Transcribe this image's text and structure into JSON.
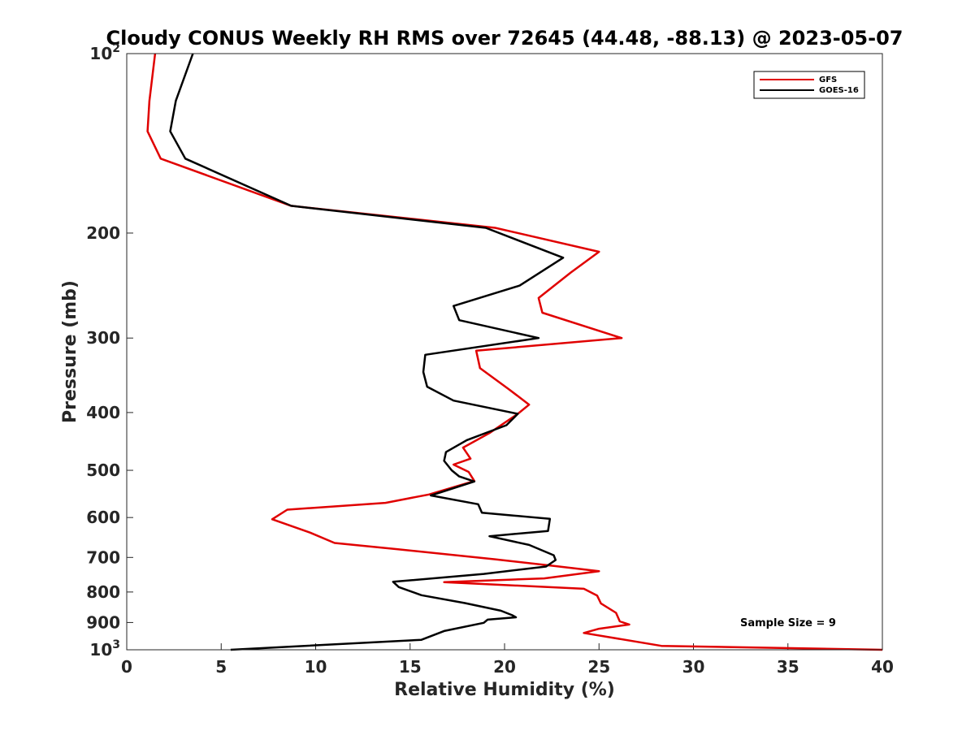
{
  "chart_data": {
    "type": "line",
    "title": "Cloudy CONUS Weekly RH RMS over 72645 (44.48, -88.13) @ 2023-05-07",
    "xlabel": "Relative Humidity (%)",
    "ylabel": "Pressure (mb)",
    "xlim": [
      0,
      40
    ],
    "ylim": [
      100,
      1000
    ],
    "y_scale": "log",
    "y_reversed": true,
    "grid": false,
    "legend_position": "top-right",
    "x_ticks": [
      0,
      5,
      10,
      15,
      20,
      25,
      30,
      35,
      40
    ],
    "x_tick_labels": [
      "0",
      "5",
      "10",
      "15",
      "20",
      "25",
      "30",
      "35",
      "40"
    ],
    "y_ticks": [
      100,
      200,
      300,
      400,
      500,
      600,
      700,
      800,
      900,
      1000
    ],
    "y_tick_labels": [
      {
        "base": "10",
        "exp": "2"
      },
      {
        "base": "200",
        "exp": ""
      },
      {
        "base": "300",
        "exp": ""
      },
      {
        "base": "400",
        "exp": ""
      },
      {
        "base": "500",
        "exp": ""
      },
      {
        "base": "600",
        "exp": ""
      },
      {
        "base": "700",
        "exp": ""
      },
      {
        "base": "800",
        "exp": ""
      },
      {
        "base": "900",
        "exp": ""
      },
      {
        "base": "10",
        "exp": "3"
      }
    ],
    "annotation": "Sample Size = 9",
    "series": [
      {
        "name": "GFS",
        "color": "#e00000",
        "points": [
          [
            1.5,
            100
          ],
          [
            1.2,
            120
          ],
          [
            1.1,
            135
          ],
          [
            1.8,
            150
          ],
          [
            8.7,
            180
          ],
          [
            19.5,
            196
          ],
          [
            25.0,
            215
          ],
          [
            23.5,
            233
          ],
          [
            21.8,
            257
          ],
          [
            22.0,
            272
          ],
          [
            26.2,
            300
          ],
          [
            18.5,
            315
          ],
          [
            18.7,
            337
          ],
          [
            20.2,
            365
          ],
          [
            21.3,
            388
          ],
          [
            20.7,
            402
          ],
          [
            19.2,
            433
          ],
          [
            17.8,
            458
          ],
          [
            18.2,
            478
          ],
          [
            17.3,
            489
          ],
          [
            18.1,
            503
          ],
          [
            18.4,
            521
          ],
          [
            16.0,
            549
          ],
          [
            13.7,
            567
          ],
          [
            8.5,
            582
          ],
          [
            7.7,
            604
          ],
          [
            9.7,
            636
          ],
          [
            11.0,
            662
          ],
          [
            14.3,
            678
          ],
          [
            19.5,
            705
          ],
          [
            22.7,
            724
          ],
          [
            25.0,
            738
          ],
          [
            22.1,
            759
          ],
          [
            16.8,
            770
          ],
          [
            24.2,
            790
          ],
          [
            24.9,
            811
          ],
          [
            25.1,
            836
          ],
          [
            25.9,
            867
          ],
          [
            26.1,
            896
          ],
          [
            26.6,
            907
          ],
          [
            25.0,
            922
          ],
          [
            24.2,
            937
          ],
          [
            28.3,
            985
          ],
          [
            40.0,
            1000
          ]
        ]
      },
      {
        "name": "GOES-16",
        "color": "#000000",
        "points": [
          [
            3.5,
            100
          ],
          [
            2.6,
            120
          ],
          [
            2.3,
            135
          ],
          [
            3.1,
            150
          ],
          [
            8.7,
            180
          ],
          [
            19.0,
            196
          ],
          [
            23.1,
            220
          ],
          [
            20.8,
            245
          ],
          [
            17.3,
            265
          ],
          [
            17.6,
            280
          ],
          [
            21.8,
            300
          ],
          [
            15.8,
            320
          ],
          [
            15.7,
            342
          ],
          [
            15.9,
            362
          ],
          [
            17.3,
            382
          ],
          [
            20.7,
            402
          ],
          [
            20.1,
            420
          ],
          [
            18.0,
            445
          ],
          [
            16.9,
            466
          ],
          [
            16.8,
            482
          ],
          [
            17.2,
            500
          ],
          [
            17.6,
            512
          ],
          [
            18.4,
            522
          ],
          [
            16.1,
            551
          ],
          [
            18.6,
            570
          ],
          [
            18.8,
            589
          ],
          [
            22.4,
            603
          ],
          [
            22.3,
            632
          ],
          [
            19.2,
            645
          ],
          [
            21.3,
            667
          ],
          [
            22.6,
            694
          ],
          [
            22.7,
            707
          ],
          [
            22.2,
            725
          ],
          [
            18.9,
            746
          ],
          [
            14.1,
            769
          ],
          [
            14.4,
            785
          ],
          [
            15.6,
            810
          ],
          [
            17.9,
            835
          ],
          [
            19.8,
            860
          ],
          [
            20.4,
            875
          ],
          [
            20.6,
            882
          ],
          [
            19.1,
            890
          ],
          [
            18.9,
            901
          ],
          [
            16.8,
            930
          ],
          [
            15.6,
            962
          ],
          [
            5.5,
            1000
          ]
        ]
      }
    ]
  }
}
